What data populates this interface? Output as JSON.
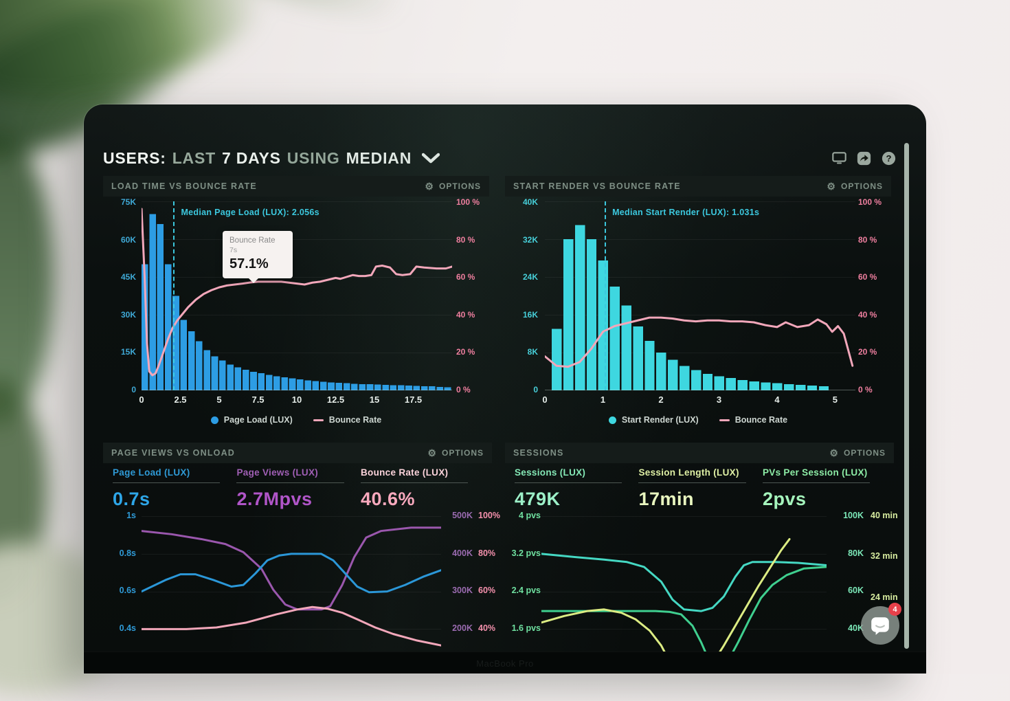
{
  "header": {
    "brand": "USERS:",
    "seg1": "LAST",
    "seg2": "7 DAYS",
    "seg3": "USING",
    "seg4": "MEDIAN"
  },
  "device": {
    "label": "MacBook Pro"
  },
  "chat": {
    "badge": "4"
  },
  "chart_data": [
    {
      "type": "bar",
      "panel_title": "LOAD TIME VS BOUNCE RATE",
      "options_label": "OPTIONS",
      "x_max": 20,
      "y_left_labels": [
        "75K",
        "60K",
        "45K",
        "30K",
        "15K",
        "0"
      ],
      "y_right_labels": [
        "100 %",
        "80 %",
        "60 %",
        "40 %",
        "20 %",
        "0 %"
      ],
      "x_ticks": [
        {
          "label": "0",
          "value": 0
        },
        {
          "label": "2.5",
          "value": 2.5
        },
        {
          "label": "5",
          "value": 5
        },
        {
          "label": "7.5",
          "value": 7.5
        },
        {
          "label": "10",
          "value": 10
        },
        {
          "label": "12.5",
          "value": 12.5
        },
        {
          "label": "15",
          "value": 15
        },
        {
          "label": "17.5",
          "value": 17.5
        }
      ],
      "bars": {
        "start": 0,
        "bin": 0.5,
        "max": 75,
        "unit": "K pages",
        "color": "#2d9de4",
        "values": [
          50,
          70,
          66,
          50,
          37.5,
          28,
          23.5,
          19.5,
          16,
          13.5,
          11.8,
          10.2,
          9.2,
          8.2,
          7.4,
          6.8,
          6.2,
          5.6,
          5.2,
          4.8,
          4.4,
          4.0,
          3.7,
          3.4,
          3.2,
          3.0,
          2.8,
          2.6,
          2.5,
          2.4,
          2.3,
          2.2,
          2.1,
          2.0,
          1.9,
          1.8,
          1.7,
          1.6,
          1.4,
          1.2
        ]
      },
      "lines": [
        {
          "name": "Bounce Rate",
          "mode": "value",
          "max": 100,
          "color": "#f2a7ba",
          "width": 3,
          "points": [
            [
              0,
              96
            ],
            [
              0.2,
              60
            ],
            [
              0.35,
              25
            ],
            [
              0.5,
              10
            ],
            [
              0.7,
              8
            ],
            [
              0.9,
              9
            ],
            [
              1.1,
              13
            ],
            [
              1.4,
              20
            ],
            [
              1.7,
              27
            ],
            [
              2.0,
              33
            ],
            [
              2.3,
              37
            ],
            [
              2.6,
              40
            ],
            [
              3.0,
              44
            ],
            [
              3.5,
              48
            ],
            [
              4.0,
              51
            ],
            [
              4.5,
              53
            ],
            [
              5.0,
              54.5
            ],
            [
              5.5,
              55.5
            ],
            [
              6.0,
              56
            ],
            [
              6.5,
              56.5
            ],
            [
              7.0,
              57.1
            ],
            [
              7.5,
              57.5
            ],
            [
              8,
              57.5
            ],
            [
              9,
              57.5
            ],
            [
              9.5,
              57
            ],
            [
              10,
              56.5
            ],
            [
              10.5,
              56
            ],
            [
              11,
              57
            ],
            [
              11.5,
              57.5
            ],
            [
              12,
              58.5
            ],
            [
              12.5,
              59.5
            ],
            [
              12.8,
              59
            ],
            [
              13.2,
              60
            ],
            [
              13.6,
              61
            ],
            [
              14,
              60.5
            ],
            [
              14.4,
              60.5
            ],
            [
              14.8,
              61
            ],
            [
              15.1,
              65.5
            ],
            [
              15.5,
              66
            ],
            [
              16,
              65
            ],
            [
              16.4,
              61.5
            ],
            [
              16.8,
              61
            ],
            [
              17.3,
              61.5
            ],
            [
              17.7,
              65.5
            ],
            [
              18.2,
              65
            ],
            [
              19,
              64.5
            ],
            [
              19.6,
              64.5
            ],
            [
              20,
              65.5
            ]
          ]
        }
      ],
      "median": {
        "label": "Median Page Load (LUX): 2.056s",
        "value": 2.056
      },
      "tooltip": {
        "title": "Bounce Rate",
        "sub": "7s",
        "value": "57.1%"
      },
      "legend": [
        {
          "label": "Page Load (LUX)",
          "marker": "dot",
          "color": "#2d9de4"
        },
        {
          "label": "Bounce Rate",
          "marker": "line",
          "color": "#f2a7ba"
        }
      ]
    },
    {
      "type": "bar",
      "panel_title": "START RENDER VS BOUNCE RATE",
      "options_label": "OPTIONS",
      "x_max": 5.35,
      "y_left_labels": [
        "40K",
        "32K",
        "24K",
        "16K",
        "8K",
        "0"
      ],
      "y_right_labels": [
        "100 %",
        "80 %",
        "60 %",
        "40 %",
        "20 %",
        "0 %"
      ],
      "x_ticks": [
        {
          "label": "0",
          "value": 0
        },
        {
          "label": "1",
          "value": 1
        },
        {
          "label": "2",
          "value": 2
        },
        {
          "label": "3",
          "value": 3
        },
        {
          "label": "4",
          "value": 4
        },
        {
          "label": "5",
          "value": 5
        }
      ],
      "bars": {
        "start": 0.12,
        "bin": 0.2,
        "max": 40,
        "unit": "K pages",
        "color": "#3ed7e0",
        "values": [
          13,
          32,
          35,
          32,
          27.5,
          22,
          18,
          13.5,
          10.5,
          8,
          6.5,
          5.2,
          4.3,
          3.5,
          3.0,
          2.6,
          2.2,
          1.9,
          1.7,
          1.5,
          1.3,
          1.2,
          1.0,
          0.9
        ]
      },
      "lines": [
        {
          "name": "Bounce Rate",
          "mode": "value",
          "max": 100,
          "color": "#f2a7ba",
          "width": 3,
          "points": [
            [
              0,
              18
            ],
            [
              0.2,
              13
            ],
            [
              0.4,
              12.5
            ],
            [
              0.6,
              15
            ],
            [
              0.8,
              22
            ],
            [
              1.0,
              31
            ],
            [
              1.2,
              34
            ],
            [
              1.4,
              35.5
            ],
            [
              1.6,
              37
            ],
            [
              1.8,
              38.5
            ],
            [
              2.0,
              38.5
            ],
            [
              2.2,
              38
            ],
            [
              2.4,
              37
            ],
            [
              2.6,
              36.5
            ],
            [
              2.8,
              37
            ],
            [
              3.0,
              37
            ],
            [
              3.2,
              36.5
            ],
            [
              3.4,
              36.5
            ],
            [
              3.6,
              36
            ],
            [
              3.8,
              34.5
            ],
            [
              4.0,
              33.5
            ],
            [
              4.15,
              36
            ],
            [
              4.35,
              33.5
            ],
            [
              4.55,
              34.5
            ],
            [
              4.7,
              37.5
            ],
            [
              4.85,
              35
            ],
            [
              4.95,
              31
            ],
            [
              5.05,
              34
            ],
            [
              5.15,
              30
            ],
            [
              5.3,
              13
            ]
          ]
        }
      ],
      "median": {
        "label": "Median Start Render (LUX): 1.031s",
        "value": 1.031
      },
      "legend": [
        {
          "label": "Start Render (LUX)",
          "marker": "dot",
          "color": "#3ed7e0"
        },
        {
          "label": "Bounce Rate",
          "marker": "line",
          "color": "#f2a7ba"
        }
      ]
    },
    {
      "type": "line",
      "panel_title": "PAGE VIEWS VS ONLOAD",
      "options_label": "OPTIONS",
      "metrics": [
        {
          "label": "Page Load (LUX)",
          "value": "0.7s",
          "label_color": "#2f9ad6",
          "value_color": "#2ea6e8"
        },
        {
          "label": "Page Views (LUX)",
          "value": "2.7Mpvs",
          "label_color": "#a05fb5",
          "value_color": "#b055c8"
        },
        {
          "label": "Bounce Rate (LUX)",
          "value": "40.6%",
          "label_color": "#fbd3db",
          "value_color": "#f8a9bd"
        }
      ],
      "y_left_labels": [
        "1s",
        "0.8s",
        "0.6s",
        "0.4s"
      ],
      "y_right_k": [
        "500K",
        "400K",
        "300K",
        "200K"
      ],
      "y_right_pct": [
        "100%",
        "80%",
        "60%",
        "40%"
      ],
      "lines": [
        {
          "name": "Page Views (LUX)",
          "mode": "screen",
          "color": "#9a57ad",
          "width": 3,
          "points": [
            [
              0,
              12
            ],
            [
              10,
              14
            ],
            [
              20,
              17
            ],
            [
              28,
              20
            ],
            [
              34,
              25
            ],
            [
              40,
              35
            ],
            [
              44,
              48
            ],
            [
              48,
              57
            ],
            [
              52,
              60
            ],
            [
              60,
              60
            ],
            [
              63,
              58
            ],
            [
              67,
              45
            ],
            [
              71,
              28
            ],
            [
              75,
              16
            ],
            [
              80,
              12
            ],
            [
              90,
              10
            ],
            [
              100,
              10
            ]
          ]
        },
        {
          "name": "Page Load (LUX)",
          "mode": "screen",
          "color": "#2b97d8",
          "width": 3,
          "points": [
            [
              0,
              49
            ],
            [
              8,
              42
            ],
            [
              13,
              38.5
            ],
            [
              18,
              38.5
            ],
            [
              24,
              42
            ],
            [
              30,
              46
            ],
            [
              34,
              45
            ],
            [
              38,
              38
            ],
            [
              42,
              30
            ],
            [
              46,
              27
            ],
            [
              50,
              26
            ],
            [
              60,
              26
            ],
            [
              64,
              30
            ],
            [
              68,
              38
            ],
            [
              72,
              46
            ],
            [
              76,
              49.5
            ],
            [
              82,
              49
            ],
            [
              88,
              45
            ],
            [
              94,
              40
            ],
            [
              100,
              36
            ]
          ]
        },
        {
          "name": "Bounce Rate (LUX)",
          "mode": "screen",
          "color": "#f2a7ba",
          "width": 3,
          "points": [
            [
              0,
              72
            ],
            [
              15,
              72
            ],
            [
              25,
              71
            ],
            [
              35,
              68
            ],
            [
              45,
              63
            ],
            [
              52,
              60
            ],
            [
              57,
              58.5
            ],
            [
              62,
              59.5
            ],
            [
              67,
              62
            ],
            [
              72,
              66
            ],
            [
              78,
              71
            ],
            [
              84,
              75
            ],
            [
              92,
              79
            ],
            [
              100,
              82
            ]
          ]
        }
      ]
    },
    {
      "type": "line",
      "panel_title": "SESSIONS",
      "options_label": "OPTIONS",
      "metrics": [
        {
          "label": "Sessions (LUX)",
          "value": "479K",
          "label_color": "#84e8b6",
          "value_color": "#9cf0c8"
        },
        {
          "label": "Session Length (LUX)",
          "value": "17min",
          "label_color": "#dff0a5",
          "value_color": "#e9f6bf"
        },
        {
          "label": "PVs Per Session (LUX)",
          "value": "2pvs",
          "label_color": "#8deca6",
          "value_color": "#a5f4bc"
        }
      ],
      "y_left_labels": [
        "4 pvs",
        "3.2 pvs",
        "2.4 pvs",
        "1.6 pvs"
      ],
      "y_right_k": [
        "100K",
        "80K",
        "60K",
        "40K"
      ],
      "y_right_min": [
        "40 min",
        "32 min",
        "24 min",
        ""
      ],
      "lines": [
        {
          "name": "PVs Per Session (LUX)",
          "mode": "screen",
          "color": "#45d8c3",
          "width": 3,
          "points": [
            [
              0,
              26
            ],
            [
              12,
              28
            ],
            [
              22,
              29.5
            ],
            [
              30,
              31
            ],
            [
              36,
              34
            ],
            [
              42,
              43
            ],
            [
              46,
              54
            ],
            [
              50,
              60
            ],
            [
              56,
              61
            ],
            [
              60,
              59
            ],
            [
              64,
              52
            ],
            [
              68,
              40
            ],
            [
              71,
              33
            ],
            [
              74,
              31
            ],
            [
              82,
              31
            ],
            [
              90,
              31.5
            ],
            [
              100,
              33
            ]
          ]
        },
        {
          "name": "Sessions (LUX)",
          "mode": "screen",
          "color": "#3fcf8f",
          "width": 3,
          "points": [
            [
              0,
              61
            ],
            [
              40,
              61
            ],
            [
              45,
              61.5
            ],
            [
              49,
              63
            ],
            [
              53,
              70
            ],
            [
              56,
              80
            ],
            [
              59,
              92
            ],
            [
              61,
              101
            ],
            [
              62,
              104
            ],
            [
              63,
              101
            ],
            [
              65,
              93
            ],
            [
              69,
              80
            ],
            [
              73,
              66
            ],
            [
              77,
              53
            ],
            [
              81,
              45
            ],
            [
              86,
              39
            ],
            [
              92,
              35
            ],
            [
              100,
              34
            ]
          ]
        },
        {
          "name": "Session Length (LUX)",
          "mode": "screen",
          "color": "#dcec83",
          "width": 3,
          "points": [
            [
              0,
              68
            ],
            [
              8,
              64
            ],
            [
              16,
              61
            ],
            [
              22,
              60
            ],
            [
              28,
              62
            ],
            [
              33,
              66
            ],
            [
              38,
              73
            ],
            [
              42,
              82
            ],
            [
              45,
              92
            ],
            [
              47,
              102
            ],
            [
              48,
              106
            ],
            [
              56,
              106
            ],
            [
              58,
              101
            ],
            [
              60,
              93
            ],
            [
              64,
              82
            ],
            [
              68,
              70
            ],
            [
              72,
              58
            ],
            [
              76,
              46
            ],
            [
              80,
              35
            ],
            [
              84,
              24
            ],
            [
              87,
              17
            ]
          ]
        }
      ]
    }
  ]
}
